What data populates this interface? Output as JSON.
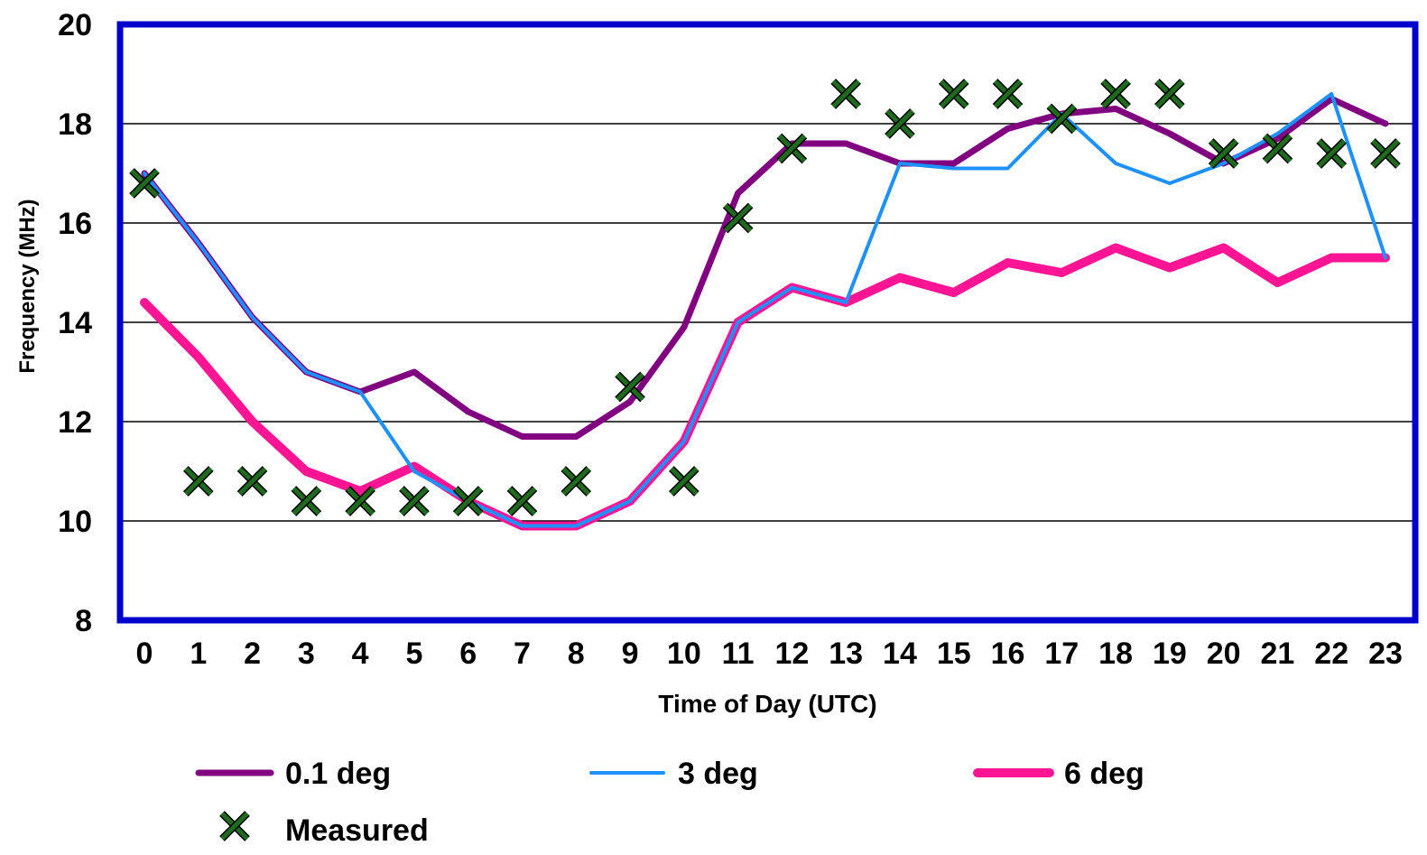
{
  "chart_data": {
    "type": "line",
    "title": "",
    "xlabel": "Time of Day (UTC)",
    "ylabel": "Frequency (MHz)",
    "xlim": [
      0,
      23
    ],
    "ylim": [
      8,
      20
    ],
    "x_ticks": [
      "0",
      "1",
      "2",
      "3",
      "4",
      "5",
      "6",
      "7",
      "8",
      "9",
      "10",
      "11",
      "12",
      "13",
      "14",
      "15",
      "16",
      "17",
      "18",
      "19",
      "20",
      "21",
      "22",
      "23"
    ],
    "y_ticks": [
      "8",
      "10",
      "12",
      "14",
      "16",
      "18",
      "20"
    ],
    "grid": true,
    "legend_position": "bottom",
    "series": [
      {
        "name": "0.1 deg",
        "kind": "line",
        "color": "#800080",
        "x": [
          0,
          1,
          2,
          3,
          4,
          5,
          6,
          7,
          8,
          9,
          10,
          11,
          12,
          13,
          14,
          15,
          16,
          17,
          18,
          19,
          20,
          21,
          22,
          23
        ],
        "values": [
          17.0,
          15.6,
          14.1,
          13.0,
          12.6,
          13.0,
          12.2,
          11.7,
          11.7,
          12.4,
          13.9,
          16.6,
          17.6,
          17.6,
          17.2,
          17.2,
          17.9,
          18.2,
          18.3,
          17.8,
          17.2,
          17.7,
          18.5,
          18.0
        ]
      },
      {
        "name": "3 deg",
        "kind": "line",
        "color": "#1E90FF",
        "x": [
          0,
          1,
          2,
          3,
          4,
          5,
          6,
          7,
          8,
          9,
          10,
          11,
          12,
          13,
          14,
          15,
          16,
          17,
          18,
          19,
          20,
          21,
          22,
          23
        ],
        "values": [
          17.0,
          15.6,
          14.1,
          13.0,
          12.6,
          11.0,
          10.4,
          9.9,
          9.9,
          10.4,
          11.6,
          14.0,
          14.7,
          14.4,
          17.2,
          17.1,
          17.1,
          18.2,
          17.2,
          16.8,
          17.2,
          17.8,
          18.6,
          15.3
        ]
      },
      {
        "name": "6 deg",
        "kind": "line",
        "color": "#FF1493",
        "x": [
          0,
          1,
          2,
          3,
          4,
          5,
          6,
          7,
          8,
          9,
          10,
          11,
          12,
          13,
          14,
          15,
          16,
          17,
          18,
          19,
          20,
          21,
          22,
          23
        ],
        "values": [
          14.4,
          13.3,
          12.0,
          11.0,
          10.6,
          11.1,
          10.4,
          9.9,
          9.9,
          10.4,
          11.6,
          14.0,
          14.7,
          14.4,
          14.9,
          14.6,
          15.2,
          15.0,
          15.5,
          15.1,
          15.5,
          14.8,
          15.3,
          15.3
        ]
      },
      {
        "name": "Measured",
        "kind": "marker",
        "color": "#1E6B1E",
        "x": [
          0,
          1,
          2,
          3,
          4,
          5,
          6,
          7,
          8,
          9,
          10,
          11,
          12,
          13,
          14,
          15,
          16,
          17,
          18,
          19,
          20,
          21,
          22,
          23
        ],
        "values": [
          16.8,
          10.8,
          10.8,
          10.4,
          10.4,
          10.4,
          10.4,
          10.4,
          10.8,
          12.7,
          10.8,
          16.1,
          17.5,
          18.6,
          18.0,
          18.6,
          18.6,
          18.1,
          18.6,
          18.6,
          17.4,
          17.5,
          17.4,
          17.4
        ]
      }
    ]
  }
}
